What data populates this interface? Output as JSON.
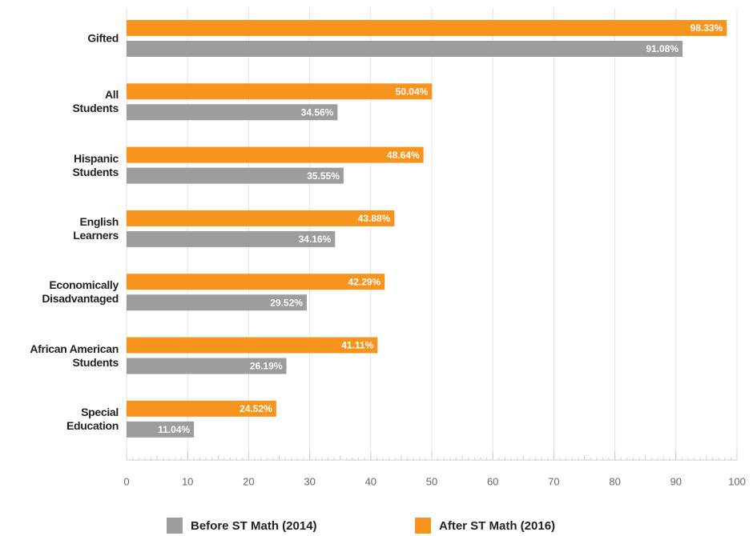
{
  "chart_data": {
    "type": "bar",
    "orientation": "horizontal",
    "categories": [
      "Gifted",
      "All\nStudents",
      "Hispanic\nStudents",
      "English\nLearners",
      "Economically\nDisadvantaged",
      "African American\nStudents",
      "Special\nEducation"
    ],
    "series": [
      {
        "name": "Before ST Math (2014)",
        "color": "#9d9d9d",
        "values": [
          91.08,
          34.56,
          35.55,
          34.16,
          29.52,
          26.19,
          11.04
        ],
        "value_labels": [
          "91.08%",
          "34.56%",
          "35.55%",
          "34.16%",
          "29.52%",
          "26.19%",
          "11.04%"
        ]
      },
      {
        "name": "After ST Math (2016)",
        "color": "#f7941d",
        "values": [
          98.33,
          50.04,
          48.64,
          43.88,
          42.29,
          41.11,
          24.52
        ],
        "value_labels": [
          "98.33%",
          "50.04%",
          "48.64%",
          "43.88%",
          "42.29%",
          "41.11%",
          "24.52%"
        ]
      }
    ],
    "xlim": [
      0,
      100
    ],
    "xticks": [
      0,
      10,
      20,
      30,
      40,
      50,
      60,
      70,
      80,
      90,
      100
    ],
    "grid": true,
    "legend": "bottom"
  }
}
